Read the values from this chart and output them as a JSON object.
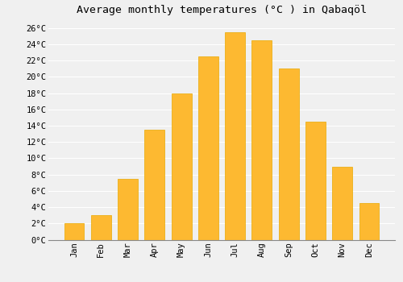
{
  "title": "Average monthly temperatures (°C ) in Qabaqöl",
  "months": [
    "Jan",
    "Feb",
    "Mar",
    "Apr",
    "May",
    "Jun",
    "Jul",
    "Aug",
    "Sep",
    "Oct",
    "Nov",
    "Dec"
  ],
  "values": [
    2.0,
    3.0,
    7.5,
    13.5,
    18.0,
    22.5,
    25.5,
    24.5,
    21.0,
    14.5,
    9.0,
    4.5
  ],
  "bar_color": "#FDB931",
  "bar_edge_color": "#E8A800",
  "background_color": "#F0F0F0",
  "grid_color": "#FFFFFF",
  "yticks": [
    0,
    2,
    4,
    6,
    8,
    10,
    12,
    14,
    16,
    18,
    20,
    22,
    24,
    26
  ],
  "ylim": [
    0,
    27
  ],
  "title_fontsize": 9.5,
  "tick_fontsize": 7.5,
  "bar_width": 0.75
}
